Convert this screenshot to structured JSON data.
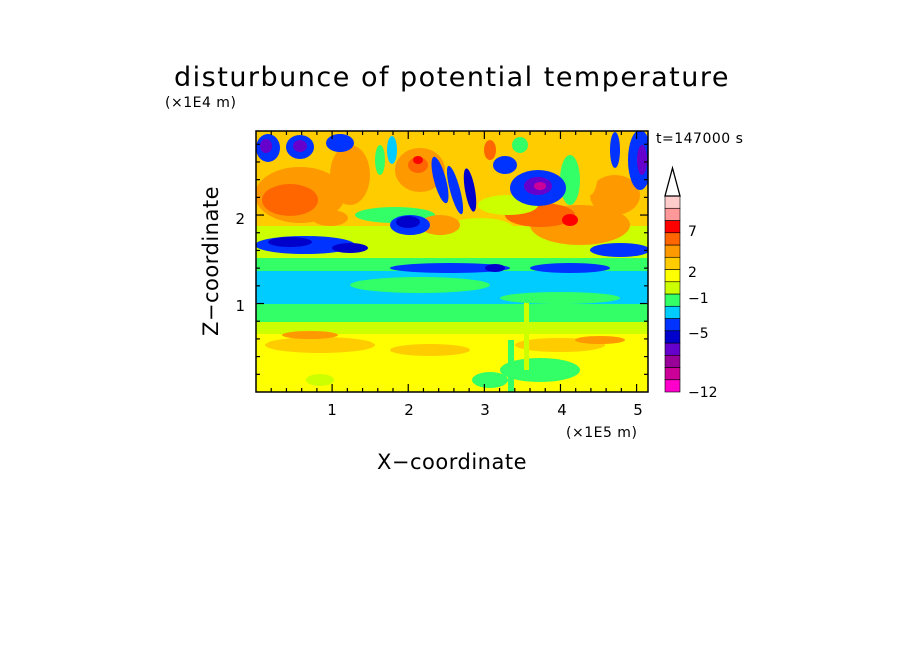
{
  "chart_data": {
    "type": "heatmap",
    "title": "disturbunce of potential temperature",
    "xlabel": "X−coordinate",
    "ylabel": "Z−coordinate",
    "x_unit": "(×1E5 m)",
    "y_unit": "(×1E4 m)",
    "time_label": "t=147000 s",
    "xlim": [
      0,
      5.15
    ],
    "ylim": [
      0,
      2.95
    ],
    "x_ticks": [
      {
        "value": 1,
        "label": "1"
      },
      {
        "value": 2,
        "label": "2"
      },
      {
        "value": 3,
        "label": "3"
      },
      {
        "value": 4,
        "label": "4"
      },
      {
        "value": 5,
        "label": "5"
      }
    ],
    "y_ticks": [
      {
        "value": 1,
        "label": "1"
      },
      {
        "value": 2,
        "label": "2"
      }
    ],
    "colorbar": {
      "labels": [
        {
          "value": 7,
          "label": "7"
        },
        {
          "value": 2,
          "label": "2"
        },
        {
          "value": -1,
          "label": "−1"
        },
        {
          "value": -5,
          "label": "−5"
        },
        {
          "value": -12,
          "label": "−12"
        }
      ],
      "colors": [
        "#ff00cc",
        "#cc0099",
        "#990099",
        "#6600cc",
        "#0000cc",
        "#0033ff",
        "#00ccff",
        "#33ff66",
        "#ccff00",
        "#ffff00",
        "#ffcc00",
        "#ff9900",
        "#ff6600",
        "#ff0000",
        "#ff9999",
        "#ffcccc"
      ],
      "extend_top": true
    }
  }
}
